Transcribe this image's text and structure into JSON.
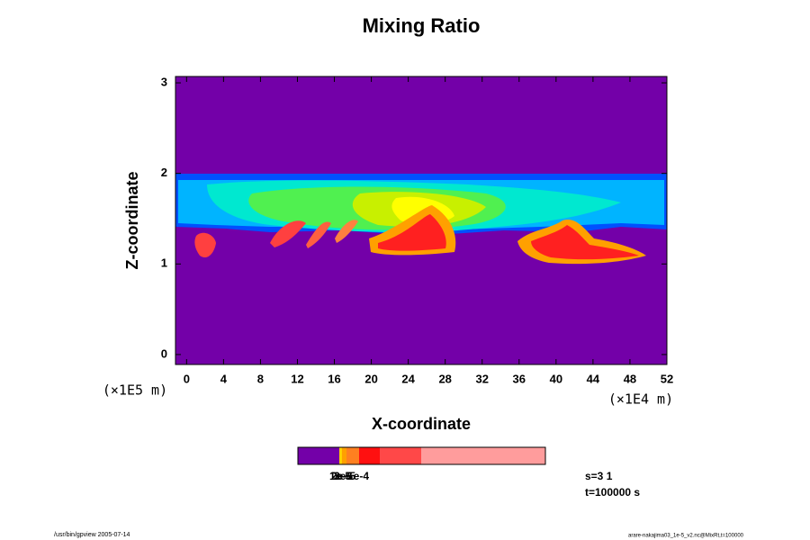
{
  "chart_data": {
    "type": "heatmap",
    "title": "Mixing Ratio",
    "xlabel": "X-coordinate",
    "ylabel": "Z-coordinate",
    "xunit": "(×1E4 m)",
    "yunit": "(×1E5 m)",
    "xlim": [
      -1.2,
      52
    ],
    "xticks": [
      0,
      4,
      8,
      12,
      16,
      20,
      24,
      28,
      32,
      36,
      40,
      44,
      48,
      52
    ],
    "ylim": [
      -0.11,
      3.07
    ],
    "yticks": [
      0,
      1,
      2,
      3
    ],
    "colorbar_labels": [
      "1e-5",
      "2e-5",
      "3e-5",
      "1e-4"
    ],
    "info": [
      "s=3 1",
      "t=100000 s"
    ],
    "footer_left": "/usr/bin/gpview 2005-07-14",
    "footer_right": "arare-nakajima03_1e-5_v2.nc@MixRt,t=100000"
  }
}
